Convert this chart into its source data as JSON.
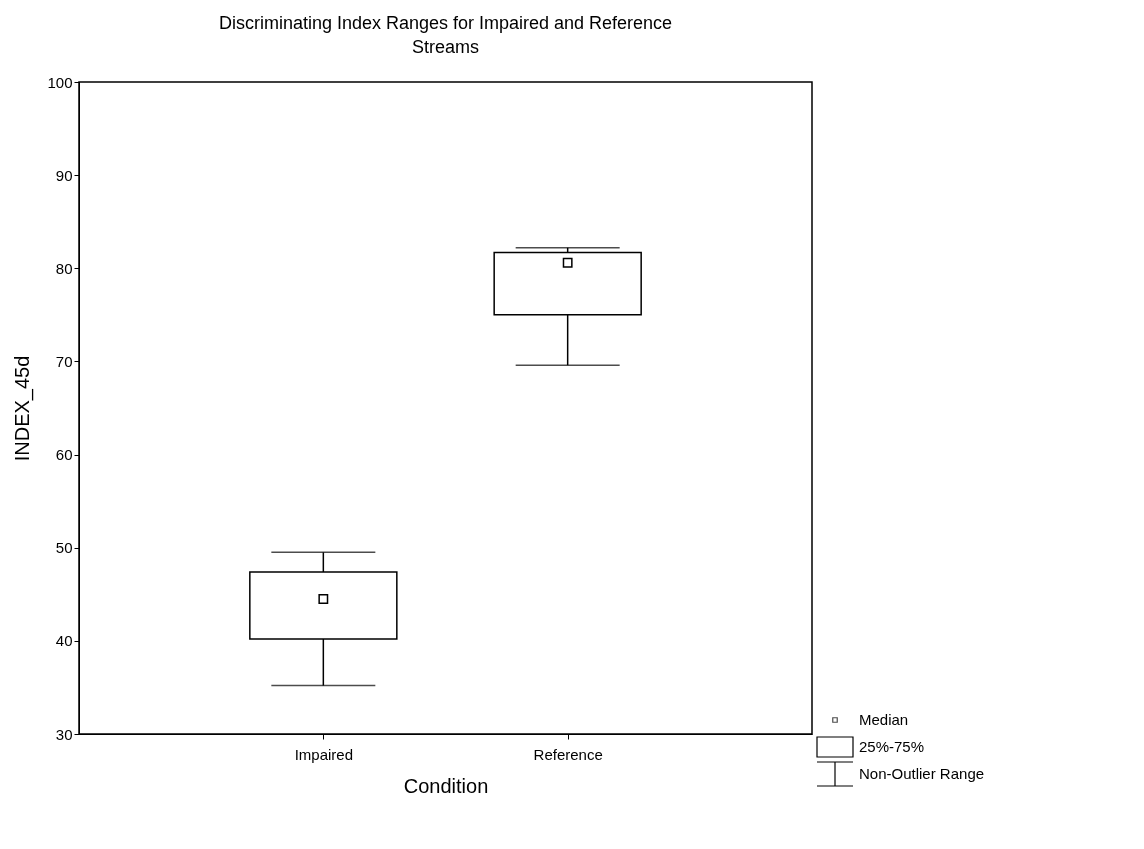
{
  "chart_data": {
    "type": "box",
    "title": "Discriminating Index Ranges for Impaired and Reference Streams",
    "xlabel": "Condition",
    "ylabel": "INDEX_45d",
    "categories": [
      "Impaired",
      "Reference"
    ],
    "boxes": [
      {
        "low": 35.2,
        "q1": 40.2,
        "median": 44.5,
        "q3": 47.4,
        "high": 49.5
      },
      {
        "low": 69.6,
        "q1": 75.0,
        "median": 80.6,
        "q3": 81.7,
        "high": 82.2
      }
    ],
    "ylim": [
      30,
      100
    ],
    "yticks": [
      30,
      40,
      50,
      60,
      70,
      80,
      90,
      100
    ],
    "grid": false,
    "marker": "square",
    "annotations": [
      "Median",
      "25%-75%",
      "Non-Outlier Range"
    ]
  }
}
